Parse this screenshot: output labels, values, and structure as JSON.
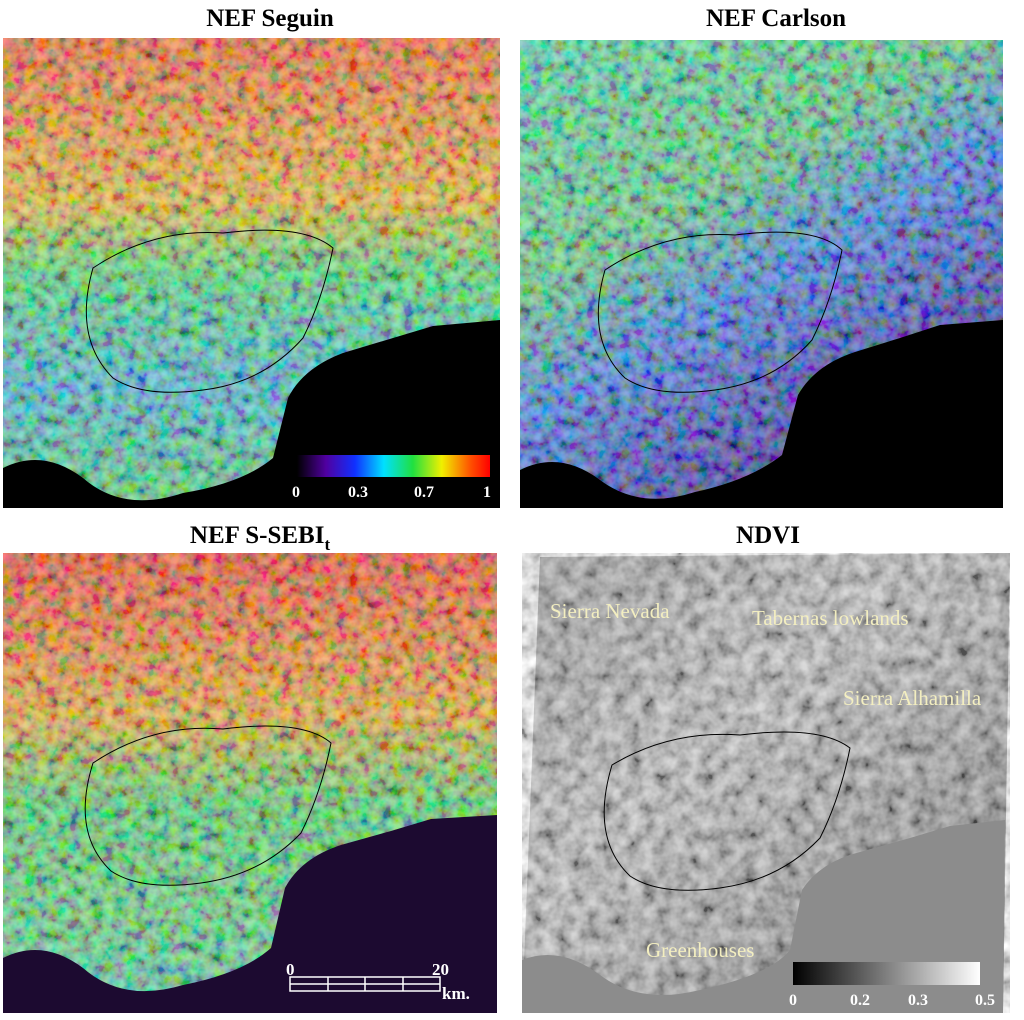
{
  "panels": [
    {
      "title": "NEF Seguin",
      "colorbar": {
        "labels": [
          0,
          0.3,
          0.7,
          1
        ]
      }
    },
    {
      "title": "NEF Carlson"
    },
    {
      "title": "NEF S-SEBI",
      "title_subscript": "t",
      "scale_bar": {
        "labels": [
          0,
          20
        ],
        "unit": "km."
      }
    },
    {
      "title": "NDVI",
      "place_labels": [
        "Sierra Nevada",
        "Tabernas lowlands",
        "Sierra Alhamilla",
        "Greenhouses"
      ],
      "colorbar": {
        "labels": [
          0,
          0.2,
          0.3,
          0.5
        ]
      }
    }
  ]
}
